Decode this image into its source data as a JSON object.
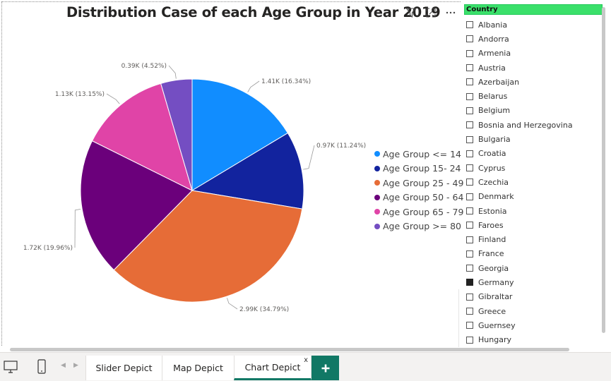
{
  "chart_data": {
    "type": "pie",
    "title": "Distribution Case of each Age Group in Year 2019",
    "categories": [
      "Age Group <= 14",
      "Age Group 15- 24",
      "Age Group 25 - 49",
      "Age Group 50 - 64",
      "Age Group 65 - 79",
      "Age Group >= 80"
    ],
    "values_k": [
      1.41,
      0.97,
      2.99,
      1.72,
      1.13,
      0.39
    ],
    "percentages": [
      16.34,
      11.24,
      34.79,
      19.96,
      13.15,
      4.52
    ],
    "labels": [
      "1.41K (16.34%)",
      "0.97K (11.24%)",
      "2.99K (34.79%)",
      "1.72K (19.96%)",
      "1.13K (13.15%)",
      "0.39K (4.52%)"
    ],
    "colors": [
      "#118dff",
      "#12239e",
      "#e66c37",
      "#6b007b",
      "#e044a7",
      "#744ec2"
    ],
    "legend_position": "right"
  },
  "visual": {
    "title": "Distribution Case of each Age Group in Year 2019",
    "header_icons": [
      "filter-icon",
      "focus-mode-icon",
      "more-options-icon"
    ]
  },
  "slicer": {
    "header": "Country",
    "header_color": "#3ae06a",
    "items": [
      {
        "label": "Albania",
        "checked": false
      },
      {
        "label": "Andorra",
        "checked": false
      },
      {
        "label": "Armenia",
        "checked": false
      },
      {
        "label": "Austria",
        "checked": false
      },
      {
        "label": "Azerbaijan",
        "checked": false
      },
      {
        "label": "Belarus",
        "checked": false
      },
      {
        "label": "Belgium",
        "checked": false
      },
      {
        "label": "Bosnia and Herzegovina",
        "checked": false
      },
      {
        "label": "Bulgaria",
        "checked": false
      },
      {
        "label": "Croatia",
        "checked": false
      },
      {
        "label": "Cyprus",
        "checked": false
      },
      {
        "label": "Czechia",
        "checked": false
      },
      {
        "label": "Denmark",
        "checked": false
      },
      {
        "label": "Estonia",
        "checked": false
      },
      {
        "label": "Faroes",
        "checked": false
      },
      {
        "label": "Finland",
        "checked": false
      },
      {
        "label": "France",
        "checked": false
      },
      {
        "label": "Georgia",
        "checked": false
      },
      {
        "label": "Germany",
        "checked": true
      },
      {
        "label": "Gibraltar",
        "checked": false
      },
      {
        "label": "Greece",
        "checked": false
      },
      {
        "label": "Guernsey",
        "checked": false
      },
      {
        "label": "Hungary",
        "checked": false
      }
    ]
  },
  "pages": {
    "tabs": [
      {
        "label": "Slider Depict",
        "active": false
      },
      {
        "label": "Map Depict",
        "active": false
      },
      {
        "label": "Chart Depict",
        "active": true
      }
    ],
    "close_glyph": "x",
    "accent": "#117865"
  }
}
